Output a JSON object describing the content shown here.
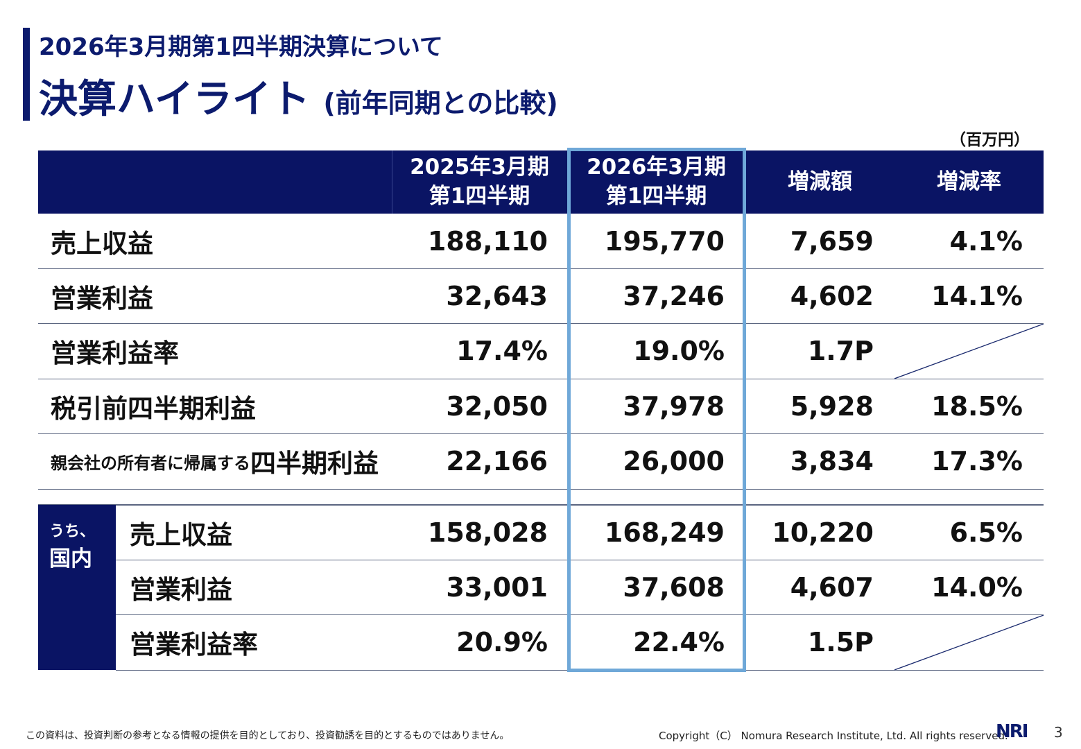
{
  "header": {
    "subtitle": "2026年3月期第1四半期決算について",
    "title": "決算ハイライト",
    "title_suffix": "(前年同期との比較)",
    "unit": "（百万円）"
  },
  "columns": [
    {
      "line1": "2025年3月期",
      "line2": "第1四半期"
    },
    {
      "line1": "2026年3月期",
      "line2": "第1四半期"
    },
    {
      "line1": "増減額",
      "line2": ""
    },
    {
      "line1": "増減率",
      "line2": ""
    }
  ],
  "rows": [
    {
      "label": "売上収益",
      "values": [
        "188,110",
        "195,770",
        "7,659",
        "4.1%"
      ]
    },
    {
      "label": "営業利益",
      "values": [
        "32,643",
        "37,246",
        "4,602",
        "14.1%"
      ]
    },
    {
      "label": "営業利益率",
      "values": [
        "17.4%",
        "19.0%",
        "1.7P",
        ""
      ]
    },
    {
      "label": "税引前四半期利益",
      "values": [
        "32,050",
        "37,978",
        "5,928",
        "18.5%"
      ]
    },
    {
      "label_small": "親会社の所有者に帰属する",
      "label": "四半期利益",
      "values": [
        "22,166",
        "26,000",
        "3,834",
        "17.3%"
      ]
    }
  ],
  "domestic": {
    "label_a": "うち、",
    "label_b": "国内",
    "rows": [
      {
        "label": "売上収益",
        "values": [
          "158,028",
          "168,249",
          "10,220",
          "6.5%"
        ]
      },
      {
        "label": "営業利益",
        "values": [
          "33,001",
          "37,608",
          "4,607",
          "14.0%"
        ]
      },
      {
        "label": "営業利益率",
        "values": [
          "20.9%",
          "22.4%",
          "1.5P",
          ""
        ]
      }
    ]
  },
  "footer": {
    "disclaimer": "この資料は、投資判断の参考となる情報の提供を目的としており、投資勧誘を目的とするものではありません。",
    "copyright": "Copyright（C） Nomura Research Institute, Ltd. All rights reserved.",
    "logo": "NRI",
    "page": "3"
  },
  "colors": {
    "navy": "#0a1464",
    "highlight": "#6fa8d8"
  }
}
